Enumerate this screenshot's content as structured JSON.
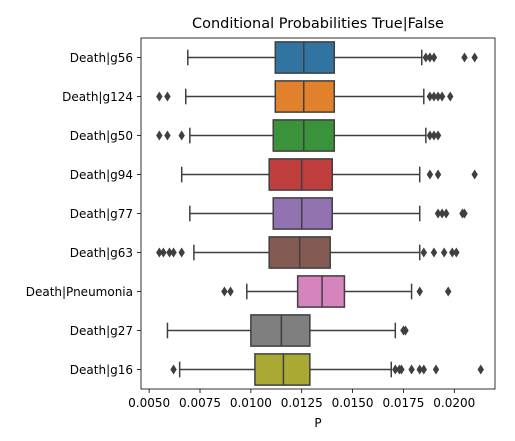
{
  "chart_data": {
    "type": "boxplot",
    "orientation": "horizontal",
    "title": "Conditional Probabilities True|False",
    "xlabel": "P",
    "ylabel": "",
    "xlim": [
      0.0046,
      0.022
    ],
    "xticks": [
      "0.0050",
      "0.0075",
      "0.0100",
      "0.0125",
      "0.0150",
      "0.0175",
      "0.0200"
    ],
    "grid": false,
    "categories": [
      {
        "label": "Death|g56",
        "color": "#3274a1",
        "whisker_low": 0.0069,
        "q1": 0.0112,
        "median": 0.0126,
        "q3": 0.0141,
        "whisker_high": 0.0184,
        "outliers": [
          0.0186,
          0.0188,
          0.019,
          0.0205,
          0.021
        ]
      },
      {
        "label": "Death|g124",
        "color": "#e1812c",
        "whisker_low": 0.0068,
        "q1": 0.0112,
        "median": 0.0126,
        "q3": 0.0141,
        "whisker_high": 0.0185,
        "outliers": [
          0.0055,
          0.0059,
          0.0188,
          0.019,
          0.0192,
          0.0194,
          0.0198
        ]
      },
      {
        "label": "Death|g50",
        "color": "#3a923a",
        "whisker_low": 0.007,
        "q1": 0.0111,
        "median": 0.0126,
        "q3": 0.0141,
        "whisker_high": 0.0186,
        "outliers": [
          0.0055,
          0.0059,
          0.0066,
          0.0188,
          0.019,
          0.0192
        ]
      },
      {
        "label": "Death|g94",
        "color": "#c03d3e",
        "whisker_low": 0.0066,
        "q1": 0.0109,
        "median": 0.0125,
        "q3": 0.014,
        "whisker_high": 0.0183,
        "outliers": [
          0.0188,
          0.0192,
          0.021
        ]
      },
      {
        "label": "Death|g77",
        "color": "#9372b2",
        "whisker_low": 0.007,
        "q1": 0.0111,
        "median": 0.0125,
        "q3": 0.014,
        "whisker_high": 0.0183,
        "outliers": [
          0.0192,
          0.0194,
          0.0196,
          0.0204,
          0.0205
        ]
      },
      {
        "label": "Death|g63",
        "color": "#845b53",
        "whisker_low": 0.0072,
        "q1": 0.0109,
        "median": 0.0124,
        "q3": 0.0139,
        "whisker_high": 0.0183,
        "outliers": [
          0.0055,
          0.0057,
          0.006,
          0.0062,
          0.0066,
          0.0185,
          0.019,
          0.0195,
          0.0199,
          0.0201
        ]
      },
      {
        "label": "Death|Pneumonia",
        "color": "#d684bd",
        "whisker_low": 0.0098,
        "q1": 0.0123,
        "median": 0.0135,
        "q3": 0.0146,
        "whisker_high": 0.0179,
        "outliers": [
          0.0087,
          0.009,
          0.0183,
          0.0197
        ]
      },
      {
        "label": "Death|g27",
        "color": "#7f7f7f",
        "whisker_low": 0.0059,
        "q1": 0.01,
        "median": 0.0115,
        "q3": 0.0129,
        "whisker_high": 0.0171,
        "outliers": [
          0.0175,
          0.0176
        ]
      },
      {
        "label": "Death|g16",
        "color": "#a9a934",
        "whisker_low": 0.0065,
        "q1": 0.0102,
        "median": 0.0116,
        "q3": 0.0129,
        "whisker_high": 0.0169,
        "outliers": [
          0.0062,
          0.0171,
          0.0173,
          0.0174,
          0.0179,
          0.0183,
          0.0185,
          0.0191,
          0.0213
        ]
      }
    ]
  }
}
